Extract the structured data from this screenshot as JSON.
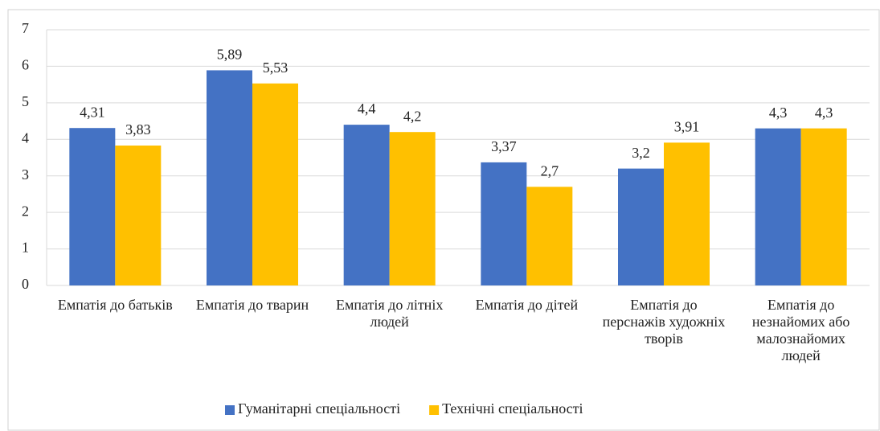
{
  "chart_data": {
    "type": "bar",
    "categories": [
      "Емпатія до батьків",
      "Емпатія до тварин",
      "Емпатія до літніх людей",
      "Емпатія до дітей",
      "Емпатія до перснажів художніх творів",
      "Емпатія до незнайомих або малознайомих людей"
    ],
    "series": [
      {
        "name": "Гуманітарні спеціальності",
        "color": "#4472c4",
        "values": [
          4.31,
          5.89,
          4.4,
          3.37,
          3.2,
          4.3
        ],
        "value_labels": [
          "4,31",
          "5,89",
          "4,4",
          "3,37",
          "3,2",
          "4,3"
        ]
      },
      {
        "name": "Технічні спеціальності",
        "color": "#ffc000",
        "values": [
          3.83,
          5.53,
          4.2,
          2.7,
          3.91,
          4.3
        ],
        "value_labels": [
          "3,83",
          "5,53",
          "4,2",
          "2,7",
          "3,91",
          "4,3"
        ]
      }
    ],
    "ylim": [
      0,
      7
    ],
    "yticks": [
      0,
      1,
      2,
      3,
      4,
      5,
      6,
      7
    ],
    "grid": true,
    "legend": "bottom"
  }
}
